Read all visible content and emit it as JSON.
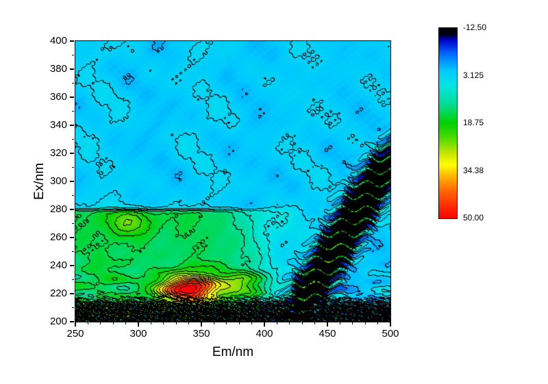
{
  "chart_data": {
    "type": "heatmap",
    "subtype": "filled-contour-EEM",
    "title": "",
    "xlabel": "Em/nm",
    "ylabel": "Ex/nm",
    "x_range": [
      250,
      500
    ],
    "y_range": [
      200,
      400
    ],
    "x_ticks": [
      250,
      300,
      350,
      400,
      450,
      500
    ],
    "x_minor_step": 10,
    "y_ticks": [
      200,
      220,
      240,
      260,
      280,
      300,
      320,
      340,
      360,
      380,
      400
    ],
    "y_minor_step": 10,
    "z_range": [
      -12.5,
      50.0
    ],
    "contour_interval": 3.125,
    "grid": false,
    "legend_position": "right",
    "colorbar": {
      "labels": [
        "-12.50",
        "3.125",
        "18.75",
        "34.38",
        "50.00"
      ],
      "values": [
        -12.5,
        3.125,
        18.75,
        34.38,
        50.0
      ],
      "orientation": "vertical, minimum at top"
    },
    "colormap": [
      {
        "t": 0.0,
        "color": "#000000"
      },
      {
        "t": 0.035,
        "color": "#000020"
      },
      {
        "t": 0.06,
        "color": "#0000c8"
      },
      {
        "t": 0.13,
        "color": "#0064ff"
      },
      {
        "t": 0.22,
        "color": "#00c8ff"
      },
      {
        "t": 0.3,
        "color": "#00e6e6"
      },
      {
        "t": 0.4,
        "color": "#00dc96"
      },
      {
        "t": 0.5,
        "color": "#00d200"
      },
      {
        "t": 0.58,
        "color": "#50dc00"
      },
      {
        "t": 0.66,
        "color": "#c8e600"
      },
      {
        "t": 0.72,
        "color": "#ffff00"
      },
      {
        "t": 0.78,
        "color": "#ffb400"
      },
      {
        "t": 0.86,
        "color": "#ff6400"
      },
      {
        "t": 1.0,
        "color": "#ff0000"
      }
    ],
    "features": {
      "background": 2.0,
      "noise_amp": 1.7,
      "plateau": {
        "amp": 13,
        "ex_edge": 280,
        "edge_width": 0.8,
        "em_fade_center": 398,
        "em_fade_width": 12
      },
      "peaks": [
        {
          "em": 293,
          "ex": 271,
          "amp": 10,
          "sx": 19,
          "sy": 10
        },
        {
          "em": 340,
          "ex": 223,
          "amp": 38,
          "sx": 23,
          "sy": 10
        },
        {
          "em": 384,
          "ex": 227,
          "amp": 15,
          "sx": 17,
          "sy": 9
        }
      ],
      "bottom_noise": {
        "amp": 16,
        "ex_max": 214,
        "fade": 2.2
      },
      "diagonal_band": {
        "em_intercept": 290,
        "em_per_ex": 0.66,
        "width": 11,
        "amp": 22,
        "ex_fade": 325
      },
      "streaks": {
        "amp": 3.0,
        "ex_center": 222,
        "ex_width": 18
      }
    },
    "peaks_observed": [
      {
        "em_nm": 340,
        "ex_nm": 223,
        "intensity": 50,
        "note": "main red hotspot"
      },
      {
        "em_nm": 384,
        "ex_nm": 227,
        "intensity": 32,
        "note": "secondary yellow peak"
      },
      {
        "em_nm": 293,
        "ex_nm": 271,
        "intensity": 25,
        "note": "green peak"
      }
    ]
  }
}
